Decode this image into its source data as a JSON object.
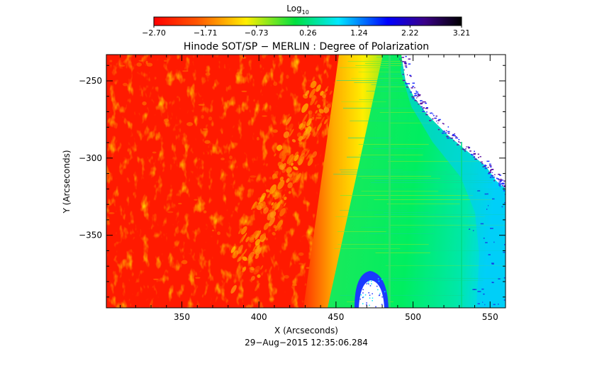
{
  "colorbar": {
    "label": "Log",
    "label_sub": "10",
    "ticks": [
      "-2.70",
      "-1.71",
      "-0.73",
      "0.26",
      "1.24",
      "2.22",
      "3.21"
    ],
    "tick_values": [
      -2.7,
      -1.71,
      -0.73,
      0.26,
      1.24,
      2.22,
      3.21
    ],
    "range": [
      -2.7,
      3.21
    ],
    "colormap": [
      "#ff0000",
      "#ff6600",
      "#ffee00",
      "#00e040",
      "#00e8ff",
      "#0000ff",
      "#3a0088",
      "#000000"
    ]
  },
  "chart_data": {
    "type": "heatmap",
    "title": "Hinode SOT/SP − MERLIN : Degree of Polarization",
    "xlabel": "X (Arcseconds)",
    "ylabel": "Y (Arcseconds)",
    "xlim": [
      301,
      560
    ],
    "ylim": [
      -397,
      -233
    ],
    "xticks": [
      350,
      400,
      450,
      500,
      550
    ],
    "yticks": [
      -250,
      -300,
      -350
    ],
    "grid": false,
    "colors": {
      "disk": "#ff1a00",
      "limb": "#ffcc00",
      "off_limb": "#00e870",
      "outer_edge": "#00c8ff",
      "no_data": "#ffffff"
    }
  },
  "timestamp": "29−Aug−2015 12:35:06.284"
}
